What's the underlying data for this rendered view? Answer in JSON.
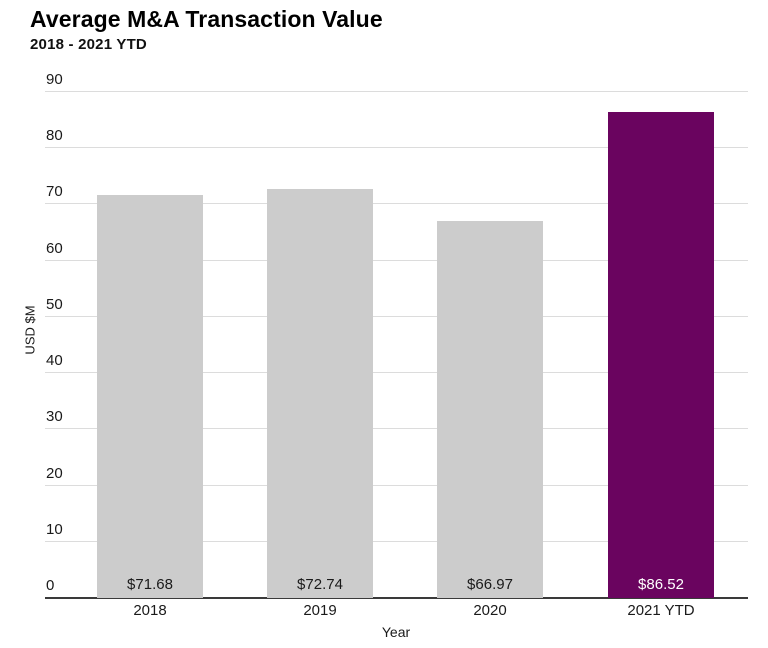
{
  "chart_data": {
    "type": "bar",
    "title": "Average M&A Transaction Value",
    "subtitle": "2018 - 2021 YTD",
    "categories": [
      "2018",
      "2019",
      "2020",
      "2021 YTD"
    ],
    "values": [
      71.68,
      72.74,
      66.97,
      86.52
    ],
    "bar_labels": [
      "$71.68",
      "$72.74",
      "$66.97",
      "$86.52"
    ],
    "xlabel": "Year",
    "ylabel": "USD $M",
    "ylim": [
      0,
      90
    ],
    "yticks": [
      0,
      10,
      20,
      30,
      40,
      50,
      60,
      70,
      80,
      90
    ],
    "grid": "horizontal-light",
    "legend": "none",
    "highlight_index": 3,
    "colors": {
      "bar_default": "#cccccc",
      "bar_highlight": "#6a045f",
      "bar_label_default": "#1a1a1a",
      "bar_label_highlight": "#ffffff",
      "gridline": "#dcdcdc",
      "axis_line": "#3a3a3a",
      "tick_text": "#1a1a1a",
      "title_text": "#000000"
    }
  }
}
